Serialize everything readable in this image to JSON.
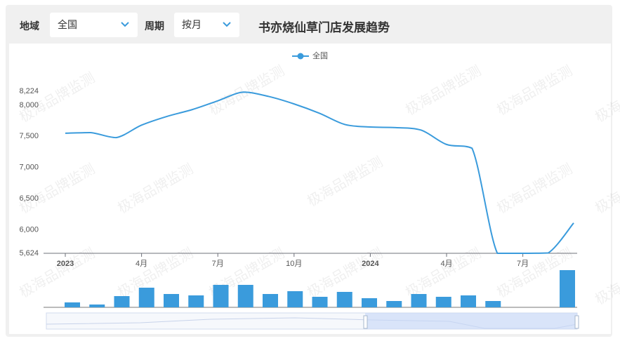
{
  "header": {
    "region_label": "地域",
    "region_value": "全国",
    "period_label": "周期",
    "period_value": "按月",
    "title": "书亦烧仙草门店发展趋势"
  },
  "watermark": "极海品牌监测",
  "chart_data": [
    {
      "type": "line",
      "categories": [
        "2023",
        null,
        null,
        "4月",
        null,
        null,
        "7月",
        null,
        null,
        "10月",
        null,
        null,
        "2024",
        null,
        null,
        "4月",
        null,
        null,
        "7月",
        null,
        null
      ],
      "series": [
        {
          "name": "全国",
          "color": "#3a9bdc",
          "values": [
            7550,
            7560,
            7480,
            7680,
            7820,
            7930,
            8070,
            8210,
            8140,
            8020,
            7870,
            7690,
            7650,
            7640,
            7600,
            7370,
            7310,
            5624,
            5624,
            5630,
            6110
          ]
        }
      ],
      "ylim": [
        5624,
        8224
      ],
      "yticks": [
        {
          "value": 5624,
          "label": "5,624"
        },
        {
          "value": 6000,
          "label": "6,000"
        },
        {
          "value": 6500,
          "label": "6,500"
        },
        {
          "value": 7000,
          "label": "7,000"
        },
        {
          "value": 7500,
          "label": "7,500"
        },
        {
          "value": 8000,
          "label": "8,000"
        },
        {
          "value": 8224,
          "label": "8,224"
        }
      ],
      "grid": false,
      "legend": "top"
    },
    {
      "type": "bar",
      "color": "#3a9bdc",
      "values": [
        7,
        4,
        16,
        28,
        19,
        17,
        32,
        32,
        19,
        23,
        15,
        22,
        13,
        9,
        19,
        15,
        17,
        9,
        0,
        0,
        53
      ],
      "ylim": [
        0,
        53
      ]
    }
  ]
}
